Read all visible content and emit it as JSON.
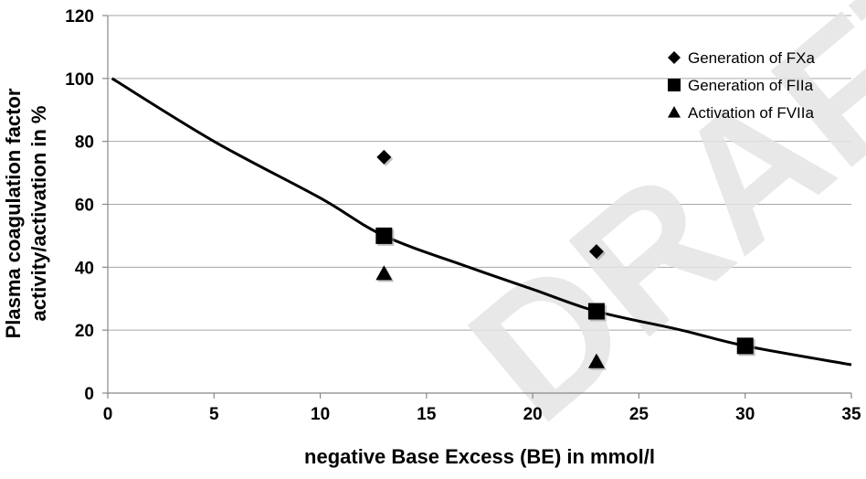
{
  "chart_data": {
    "type": "scatter",
    "title": "",
    "xlabel": "negative Base Excess (BE) in mmol/l",
    "ylabel_lines": [
      "Plasma coagulation factor",
      "activity/activation in %"
    ],
    "xlim": [
      0,
      35
    ],
    "ylim": [
      0,
      120
    ],
    "x_ticks": [
      0,
      5,
      10,
      15,
      20,
      25,
      30,
      35
    ],
    "y_ticks": [
      0,
      20,
      40,
      60,
      80,
      100,
      120
    ],
    "grid": "horizontal",
    "legend_position": "top-right",
    "series": [
      {
        "name": "Generation of FXa",
        "marker": "diamond",
        "points": [
          {
            "x": 13,
            "y": 75
          },
          {
            "x": 23,
            "y": 45
          }
        ]
      },
      {
        "name": "Generation of FIIa",
        "marker": "square",
        "points": [
          {
            "x": 13,
            "y": 50
          },
          {
            "x": 23,
            "y": 26
          },
          {
            "x": 30,
            "y": 15
          }
        ]
      },
      {
        "name": "Activation of FVIIa",
        "marker": "triangle",
        "points": [
          {
            "x": 13,
            "y": 38
          },
          {
            "x": 23,
            "y": 10
          }
        ]
      }
    ],
    "trend_line": {
      "type": "exponential",
      "x_range": [
        0.2,
        35
      ],
      "points": [
        {
          "x": 0.2,
          "y": 100
        },
        {
          "x": 5,
          "y": 80
        },
        {
          "x": 10,
          "y": 62
        },
        {
          "x": 13,
          "y": 50
        },
        {
          "x": 17,
          "y": 40
        },
        {
          "x": 20,
          "y": 33
        },
        {
          "x": 23,
          "y": 26
        },
        {
          "x": 27,
          "y": 20
        },
        {
          "x": 30,
          "y": 15
        },
        {
          "x": 35,
          "y": 9
        }
      ]
    },
    "watermark": "DRAFTED"
  }
}
